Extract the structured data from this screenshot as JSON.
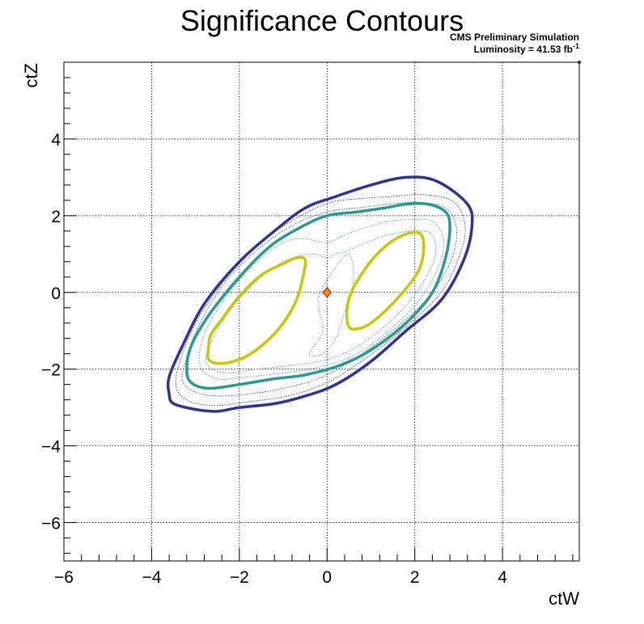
{
  "chart_data": {
    "type": "contour",
    "title": "Significance Contours",
    "annotation_line1": "CMS Preliminary Simulation",
    "annotation_line2_prefix": "Luminosity = 41.53 fb",
    "annotation_line2_sup": "-1",
    "xlabel": "ctW",
    "ylabel": "ctZ",
    "xlim": [
      -6,
      5.75
    ],
    "ylim": [
      -7,
      6
    ],
    "xticks": [
      -6,
      -4,
      -2,
      0,
      2,
      4
    ],
    "yticks": [
      -6,
      -4,
      -2,
      0,
      2,
      4
    ],
    "tick_labels_x": [
      "−6",
      "−4",
      "−2",
      "0",
      "2",
      "4"
    ],
    "tick_labels_y": [
      "−6",
      "−4",
      "−2",
      "0",
      "2",
      "4"
    ],
    "grid": true,
    "best_fit_point": {
      "x": 0,
      "y": 0,
      "color": "#ff8c00"
    },
    "contours": [
      {
        "level": "outer",
        "color": "#2f3393",
        "width": 3.5,
        "dashed": false,
        "points": [
          [
            -3.6,
            -2.65
          ],
          [
            -3.5,
            -2.9
          ],
          [
            -3.0,
            -3.05
          ],
          [
            -2.5,
            -3.1
          ],
          [
            -2.0,
            -3.0
          ],
          [
            -1.2,
            -2.9
          ],
          [
            -0.5,
            -2.7
          ],
          [
            0.2,
            -2.4
          ],
          [
            1.0,
            -1.8
          ],
          [
            1.8,
            -1.0
          ],
          [
            2.6,
            -0.2
          ],
          [
            3.1,
            0.8
          ],
          [
            3.3,
            1.7
          ],
          [
            3.2,
            2.3
          ],
          [
            2.5,
            2.9
          ],
          [
            1.8,
            3.0
          ],
          [
            1.0,
            2.8
          ],
          [
            0.2,
            2.5
          ],
          [
            -0.5,
            2.2
          ],
          [
            -1.2,
            1.6
          ],
          [
            -2.0,
            0.8
          ],
          [
            -2.8,
            -0.3
          ],
          [
            -3.3,
            -1.4
          ],
          [
            -3.6,
            -2.2
          ]
        ]
      },
      {
        "level": "mid-dotted-1",
        "color": "#2f3393",
        "width": 0.9,
        "dashed": true,
        "points": [
          [
            -3.45,
            -2.4
          ],
          [
            -3.2,
            -2.8
          ],
          [
            -2.6,
            -2.95
          ],
          [
            -1.8,
            -2.85
          ],
          [
            -0.9,
            -2.7
          ],
          [
            0.0,
            -2.35
          ],
          [
            0.9,
            -1.7
          ],
          [
            1.8,
            -0.9
          ],
          [
            2.6,
            0.0
          ],
          [
            3.0,
            0.9
          ],
          [
            3.15,
            1.7
          ],
          [
            2.9,
            2.35
          ],
          [
            2.2,
            2.55
          ],
          [
            1.5,
            2.5
          ],
          [
            0.8,
            2.45
          ],
          [
            0.1,
            2.35
          ],
          [
            -0.6,
            2.0
          ],
          [
            -1.4,
            1.4
          ],
          [
            -2.2,
            0.5
          ],
          [
            -2.9,
            -0.6
          ],
          [
            -3.3,
            -1.6
          ]
        ]
      },
      {
        "level": "mid-dotted-2",
        "color": "#2f3393",
        "width": 0.8,
        "dashed": true,
        "points": [
          [
            -3.3,
            -2.3
          ],
          [
            -3.0,
            -2.6
          ],
          [
            -2.5,
            -2.7
          ],
          [
            -1.8,
            -2.65
          ],
          [
            -1.0,
            -2.5
          ],
          [
            -0.1,
            -2.2
          ],
          [
            0.8,
            -1.6
          ],
          [
            1.7,
            -0.8
          ],
          [
            2.4,
            0.0
          ],
          [
            2.85,
            0.9
          ],
          [
            2.95,
            1.7
          ],
          [
            2.7,
            2.2
          ],
          [
            2.1,
            2.35
          ],
          [
            1.4,
            2.3
          ],
          [
            0.7,
            2.2
          ],
          [
            0.0,
            2.1
          ],
          [
            -0.7,
            1.8
          ],
          [
            -1.5,
            1.2
          ],
          [
            -2.3,
            0.3
          ],
          [
            -2.9,
            -0.8
          ],
          [
            -3.2,
            -1.7
          ]
        ]
      },
      {
        "level": "middle",
        "color": "#2a9a8f",
        "width": 3.5,
        "dashed": false,
        "points": [
          [
            -3.2,
            -2.0
          ],
          [
            -3.1,
            -2.35
          ],
          [
            -2.7,
            -2.5
          ],
          [
            -2.0,
            -2.4
          ],
          [
            -1.2,
            -2.25
          ],
          [
            -0.5,
            -2.15
          ],
          [
            0.3,
            -1.9
          ],
          [
            1.0,
            -1.5
          ],
          [
            1.8,
            -0.8
          ],
          [
            2.4,
            0.0
          ],
          [
            2.7,
            0.9
          ],
          [
            2.8,
            1.7
          ],
          [
            2.7,
            2.1
          ],
          [
            2.3,
            2.3
          ],
          [
            1.8,
            2.3
          ],
          [
            1.3,
            2.2
          ],
          [
            0.7,
            2.1
          ],
          [
            0.0,
            2.0
          ],
          [
            -0.6,
            1.7
          ],
          [
            -1.3,
            1.2
          ],
          [
            -2.0,
            0.4
          ],
          [
            -2.7,
            -0.6
          ],
          [
            -3.1,
            -1.4
          ]
        ]
      },
      {
        "level": "inner-dotted-1",
        "color": "#2a9a8f",
        "width": 0.8,
        "dashed": true,
        "points": [
          [
            -2.9,
            -1.9
          ],
          [
            -2.5,
            -2.25
          ],
          [
            -1.8,
            -2.2
          ],
          [
            -1.0,
            -2.1
          ],
          [
            -0.2,
            -1.95
          ],
          [
            0.6,
            -1.65
          ],
          [
            1.4,
            -1.0
          ],
          [
            2.1,
            -0.2
          ],
          [
            2.55,
            0.7
          ],
          [
            2.65,
            1.4
          ],
          [
            2.4,
            1.85
          ],
          [
            1.9,
            1.9
          ],
          [
            1.4,
            1.85
          ],
          [
            0.9,
            1.7
          ],
          [
            0.4,
            1.5
          ],
          [
            0.0,
            1.3
          ],
          [
            -0.5,
            1.4
          ],
          [
            -1.0,
            1.3
          ],
          [
            -1.6,
            0.8
          ],
          [
            -2.3,
            -0.1
          ],
          [
            -2.8,
            -1.1
          ]
        ]
      },
      {
        "level": "inner-dotted-2",
        "color": "#2a9a8f",
        "width": 0.8,
        "dashed": true,
        "points": [
          [
            -2.75,
            -1.85
          ],
          [
            -2.3,
            -2.1
          ],
          [
            -1.6,
            -2.0
          ],
          [
            -0.8,
            -1.9
          ],
          [
            0.0,
            -1.75
          ],
          [
            0.7,
            -1.4
          ],
          [
            1.5,
            -0.7
          ],
          [
            2.1,
            0.1
          ],
          [
            2.45,
            0.9
          ],
          [
            2.4,
            1.5
          ],
          [
            2.0,
            1.6
          ],
          [
            1.4,
            1.5
          ],
          [
            0.9,
            1.3
          ],
          [
            0.5,
            1.1
          ],
          [
            0.2,
            1.0
          ],
          [
            0.0,
            0.9
          ],
          [
            -0.3,
            1.0
          ],
          [
            -0.8,
            0.9
          ],
          [
            -1.4,
            0.5
          ],
          [
            -2.1,
            -0.3
          ],
          [
            -2.6,
            -1.2
          ]
        ]
      },
      {
        "level": "inner-dotted-3",
        "color": "#2a9a8f",
        "width": 0.8,
        "dashed": true,
        "points": [
          [
            -0.4,
            -1.6
          ],
          [
            -0.1,
            -1.0
          ],
          [
            -0.2,
            -0.2
          ],
          [
            0.1,
            0.5
          ],
          [
            0.5,
            1.0
          ],
          [
            0.6,
            0.3
          ],
          [
            0.4,
            -0.5
          ],
          [
            0.2,
            -1.2
          ],
          [
            -0.1,
            -1.6
          ]
        ]
      },
      {
        "level": "inner-left",
        "color": "#c8c800",
        "width": 3.5,
        "dashed": false,
        "points": [
          [
            -2.7,
            -1.4
          ],
          [
            -2.7,
            -1.75
          ],
          [
            -2.4,
            -1.85
          ],
          [
            -1.9,
            -1.7
          ],
          [
            -1.4,
            -1.3
          ],
          [
            -1.0,
            -0.8
          ],
          [
            -0.7,
            -0.2
          ],
          [
            -0.55,
            0.4
          ],
          [
            -0.5,
            0.85
          ],
          [
            -0.7,
            0.9
          ],
          [
            -1.0,
            0.75
          ],
          [
            -1.5,
            0.45
          ],
          [
            -2.0,
            -0.1
          ],
          [
            -2.4,
            -0.7
          ],
          [
            -2.65,
            -1.1
          ]
        ]
      },
      {
        "level": "inner-right",
        "color": "#c8c800",
        "width": 3.5,
        "dashed": false,
        "points": [
          [
            0.5,
            -0.9
          ],
          [
            0.7,
            -0.95
          ],
          [
            1.0,
            -0.8
          ],
          [
            1.4,
            -0.4
          ],
          [
            1.8,
            0.1
          ],
          [
            2.1,
            0.6
          ],
          [
            2.2,
            1.1
          ],
          [
            2.15,
            1.5
          ],
          [
            1.9,
            1.55
          ],
          [
            1.5,
            1.35
          ],
          [
            1.1,
            0.95
          ],
          [
            0.8,
            0.5
          ],
          [
            0.55,
            0.0
          ],
          [
            0.45,
            -0.5
          ]
        ]
      }
    ],
    "corner_marker": {
      "x": 5.75,
      "y": 6,
      "color": "#2f3393"
    }
  }
}
